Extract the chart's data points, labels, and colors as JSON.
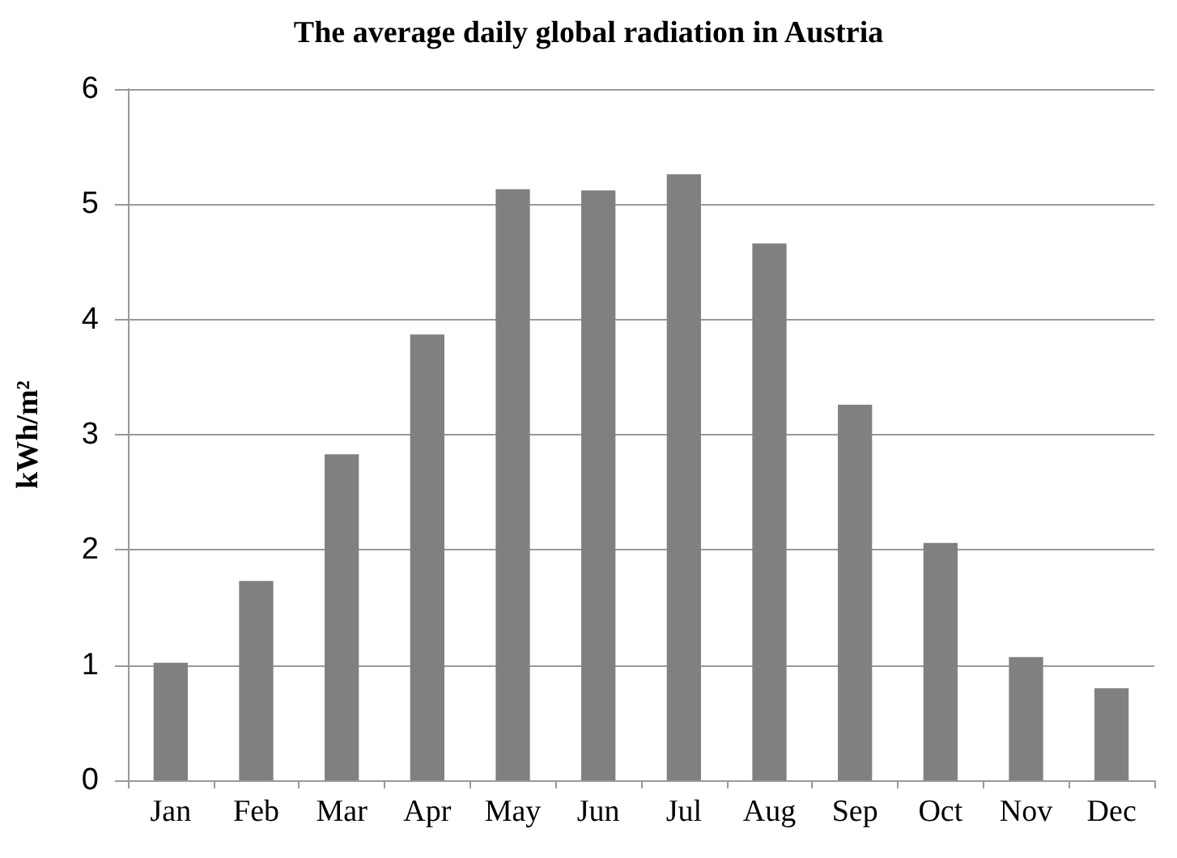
{
  "chart_data": {
    "type": "bar",
    "title": "The average daily global radiation in Austria",
    "ylabel": "kWh/m²",
    "categories": [
      "Jan",
      "Feb",
      "Mar",
      "Apr",
      "May",
      "Jun",
      "Jul",
      "Aug",
      "Sep",
      "Oct",
      "Nov",
      "Dec"
    ],
    "values": [
      1.02,
      1.73,
      2.83,
      3.87,
      5.13,
      5.12,
      5.26,
      4.66,
      3.26,
      2.06,
      1.07,
      0.8
    ],
    "color": "#808080",
    "ylim": [
      0,
      6
    ],
    "yticks": [
      0,
      1,
      2,
      3,
      4,
      5,
      6
    ],
    "grid": "y"
  }
}
